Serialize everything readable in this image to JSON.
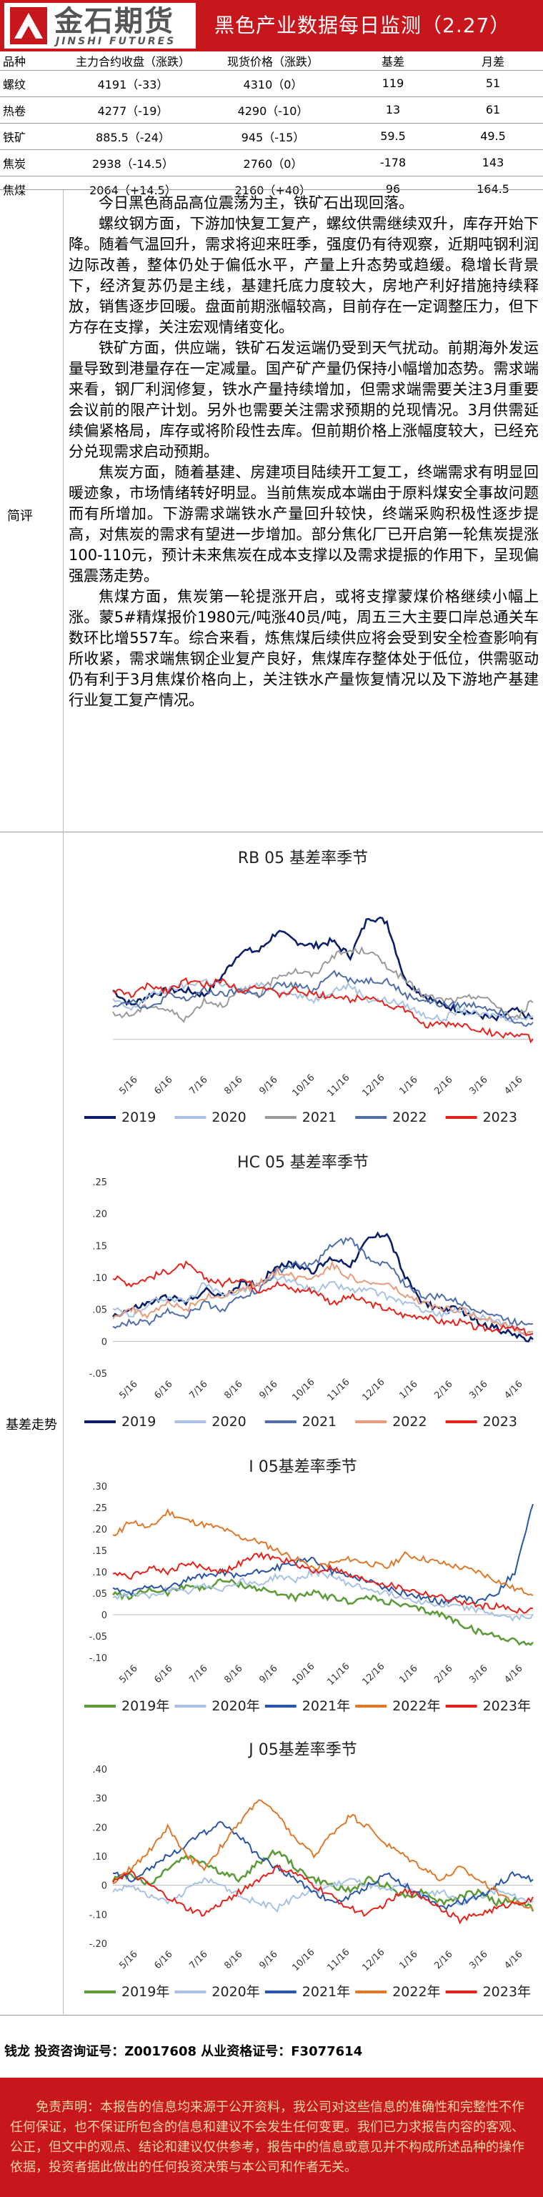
{
  "header": {
    "logo_cn": "金石期货",
    "logo_en": "JINSHI FUTURES",
    "title": "黑色产业数据每日监测（2.27）"
  },
  "price_table": {
    "headers": [
      "品种",
      "主力合约收盘（涨跌）",
      "现货价格（涨跌）",
      "基差",
      "月差"
    ],
    "rows": [
      [
        "螺纹",
        "4191（-33）",
        "4310（0）",
        "119",
        "51"
      ],
      [
        "热卷",
        "4277（-19）",
        "4290（-10）",
        "13",
        "61"
      ],
      [
        "铁矿",
        "885.5（-24）",
        "945（-15）",
        "59.5",
        "49.5"
      ],
      [
        "焦炭",
        "2938（-14.5）",
        "2760（0）",
        "-178",
        "143"
      ],
      [
        "焦煤",
        "2064（+14.5）",
        "2160（+40）",
        "96",
        "164.5"
      ]
    ]
  },
  "commentary": {
    "label": "简评",
    "paragraphs": [
      "今日黑色商品高位震荡为主，铁矿石出现回落。",
      "螺纹钢方面，下游加快复工复产，螺纹供需继续双升，库存开始下降。随着气温回升，需求将迎来旺季，强度仍有待观察，近期吨钢利润边际改善，整体仍处于偏低水平，产量上升态势或趋缓。稳增长背景下，经济复苏仍是主线，基建托底力度较大，房地产利好措施持续释放，销售逐步回暖。盘面前期涨幅较高，目前存在一定调整压力，但下方存在支撑，关注宏观情绪变化。",
      "铁矿方面，供应端，铁矿石发运端仍受到天气扰动。前期海外发运量导致到港量存在一定减量。国产矿产量仍保持小幅增加态势。需求端来看，钢厂利润修复，铁水产量持续增加，但需求端需要关注3月重要会议前的限产计划。另外也需要关注需求预期的兑现情况。3月供需延续偏紧格局，库存或将阶段性去库。但前期价格上涨幅度较大，已经充分兑现需求启动预期。",
      "焦炭方面，随着基建、房建项目陆续开工复工，终端需求有明显回暖迹象，市场情绪转好明显。当前焦炭成本端由于原料煤安全事故问题而有所增加。下游需求端铁水产量回升较快，终端采购积极性逐步提高，对焦炭的需求有望进一步增加。部分焦化厂已开启第一轮焦炭提涨100-110元，预计未来焦炭在成本支撑以及需求提振的作用下，呈现偏强震荡走势。",
      "焦煤方面，焦炭第一轮提涨开启，或将支撑蒙煤价格继续小幅上涨。蒙5#精煤报价1980元/吨涨40员/吨，周五三大主要口岸总通关车数环比增557车。综合来看，炼焦煤后续供应将会受到安全检查影响有所收紧，需求端焦钢企业复产良好，焦煤库存整体处于低位，供需驱动仍有利于3月焦煤价格向上，关注铁水产量恢复情况以及下游地产基建行业复工复产情况。"
    ]
  },
  "basis_section": {
    "label": "基差走势"
  },
  "chart_data": [
    {
      "type": "line",
      "title": "RB 05 基差率季节",
      "ylim": [
        -0.06,
        0.33
      ],
      "yticks": [],
      "xticks": [
        "5/16",
        "6/16",
        "7/16",
        "8/16",
        "9/16",
        "10/16",
        "11/16",
        "12/16",
        "1/16",
        "2/16",
        "3/16",
        "4/16"
      ],
      "legend_position": "bottom",
      "colors": [
        "#0b1f6b",
        "#a7c2e4",
        "#9a9a9a",
        "#4f6ea8",
        "#e5231c"
      ],
      "series": [
        {
          "name": "2019",
          "values": [
            0.1,
            0.07,
            0.09,
            0.1,
            0.1,
            0.09,
            0.13,
            0.18,
            0.18,
            0.22,
            0.2,
            0.19,
            0.2,
            0.17,
            0.25,
            0.24,
            0.12,
            0.09,
            0.07,
            0.06,
            0.05,
            0.04,
            0.06,
            0.04
          ]
        },
        {
          "name": "2020",
          "values": [
            0.08,
            0.06,
            0.09,
            0.1,
            0.11,
            0.12,
            0.11,
            0.1,
            0.11,
            0.1,
            0.09,
            0.08,
            0.1,
            0.11,
            0.08,
            0.08,
            0.07,
            0.05,
            0.04,
            0.06,
            0.05,
            0.05,
            0.04,
            0.05
          ]
        },
        {
          "name": "2021",
          "values": [
            0.05,
            0.05,
            0.07,
            0.06,
            0.04,
            0.08,
            0.07,
            0.1,
            0.09,
            0.13,
            0.14,
            0.13,
            0.17,
            0.18,
            0.18,
            0.15,
            0.12,
            0.09,
            0.08,
            0.08,
            0.09,
            0.07,
            0.04,
            0.08
          ]
        },
        {
          "name": "2022",
          "values": [
            0.07,
            0.08,
            0.06,
            0.09,
            0.08,
            0.1,
            0.09,
            0.1,
            0.09,
            0.11,
            0.11,
            0.1,
            0.14,
            0.12,
            0.12,
            0.12,
            0.09,
            0.08,
            0.07,
            0.07,
            0.07,
            0.06,
            0.04,
            0.03
          ]
        },
        {
          "name": "2023",
          "values": [
            0.1,
            0.09,
            0.11,
            0.1,
            0.12,
            0.11,
            0.12,
            0.1,
            0.11,
            0.09,
            0.1,
            0.09,
            0.09,
            0.08,
            0.09,
            0.07,
            0.06,
            0.03,
            0.03,
            0.03,
            0.02,
            0.01,
            0.01,
            0.0
          ]
        }
      ]
    },
    {
      "type": "line",
      "title": "HC 05 基差率季节",
      "ylim": [
        -0.05,
        0.25
      ],
      "yticks": [
        -0.05,
        0,
        0.05,
        0.1,
        0.15,
        0.2,
        0.25
      ],
      "xticks": [
        "5/16",
        "6/16",
        "7/16",
        "8/16",
        "9/16",
        "10/16",
        "11/16",
        "12/16",
        "1/16",
        "2/16",
        "3/16",
        "4/16"
      ],
      "legend_position": "bottom",
      "colors": [
        "#0b1f6b",
        "#a7c2e4",
        "#4f6ea8",
        "#e89b7b",
        "#e5231c"
      ],
      "series": [
        {
          "name": "2019",
          "values": [
            0.04,
            0.05,
            0.06,
            0.07,
            0.06,
            0.08,
            0.07,
            0.09,
            0.09,
            0.12,
            0.12,
            0.11,
            0.13,
            0.12,
            0.16,
            0.17,
            0.1,
            0.06,
            0.05,
            0.05,
            0.03,
            0.02,
            0.01,
            0.0
          ]
        },
        {
          "name": "2020",
          "values": [
            0.05,
            0.04,
            0.06,
            0.07,
            0.06,
            0.09,
            0.07,
            0.08,
            0.09,
            0.1,
            0.09,
            0.08,
            0.09,
            0.08,
            0.08,
            0.07,
            0.06,
            0.05,
            0.04,
            0.05,
            0.04,
            0.03,
            0.02,
            0.01
          ]
        },
        {
          "name": "2021",
          "values": [
            0.02,
            0.03,
            0.03,
            0.05,
            0.04,
            0.06,
            0.05,
            0.07,
            0.08,
            0.11,
            0.12,
            0.12,
            0.15,
            0.16,
            0.13,
            0.12,
            0.09,
            0.07,
            0.07,
            0.06,
            0.05,
            0.04,
            0.03,
            0.03
          ]
        },
        {
          "name": "2022",
          "values": [
            0.04,
            0.05,
            0.04,
            0.06,
            0.05,
            0.07,
            0.07,
            0.08,
            0.09,
            0.11,
            0.1,
            0.1,
            0.12,
            0.1,
            0.09,
            0.09,
            0.07,
            0.06,
            0.05,
            0.05,
            0.04,
            0.03,
            0.02,
            0.01
          ]
        },
        {
          "name": "2023",
          "values": [
            0.1,
            0.09,
            0.1,
            0.11,
            0.12,
            0.1,
            0.09,
            0.1,
            0.08,
            0.09,
            0.08,
            0.08,
            0.06,
            0.07,
            0.06,
            0.05,
            0.04,
            0.04,
            0.03,
            0.03,
            0.02,
            0.02,
            0.02,
            0.01
          ]
        }
      ]
    },
    {
      "type": "line",
      "title": "I 05基差率季节",
      "ylim": [
        -0.1,
        0.3
      ],
      "yticks": [
        -0.1,
        -0.05,
        0,
        0.05,
        0.1,
        0.15,
        0.2,
        0.25,
        0.3
      ],
      "xticks": [
        "5/16",
        "6/16",
        "7/16",
        "8/16",
        "9/16",
        "10/16",
        "11/16",
        "12/16",
        "1/16",
        "2/16",
        "3/16",
        "4/16"
      ],
      "legend_position": "bottom",
      "colors": [
        "#5e9b3a",
        "#a7c2e4",
        "#2a54a6",
        "#e0782a",
        "#e5231c"
      ],
      "series": [
        {
          "name": "2019年",
          "values": [
            0.05,
            0.04,
            0.06,
            0.05,
            0.07,
            0.06,
            0.08,
            0.07,
            0.06,
            0.05,
            0.04,
            0.05,
            0.04,
            0.03,
            0.04,
            0.03,
            0.02,
            0.01,
            0.0,
            -0.02,
            -0.04,
            -0.05,
            -0.06,
            -0.07
          ]
        },
        {
          "name": "2020年",
          "values": [
            0.04,
            0.05,
            0.04,
            0.06,
            0.05,
            0.07,
            0.06,
            0.08,
            0.07,
            0.09,
            0.08,
            0.1,
            0.09,
            0.07,
            0.06,
            0.05,
            0.04,
            0.03,
            0.02,
            0.02,
            0.01,
            0.0,
            -0.01,
            0.0
          ]
        },
        {
          "name": "2021年",
          "values": [
            0.06,
            0.05,
            0.07,
            0.06,
            0.08,
            0.09,
            0.1,
            0.09,
            0.1,
            0.11,
            0.12,
            0.13,
            0.1,
            0.09,
            0.08,
            0.06,
            0.05,
            0.04,
            0.03,
            0.04,
            0.03,
            0.05,
            0.1,
            0.26
          ]
        },
        {
          "name": "2022年",
          "values": [
            0.18,
            0.22,
            0.2,
            0.24,
            0.22,
            0.21,
            0.2,
            0.18,
            0.17,
            0.15,
            0.13,
            0.11,
            0.12,
            0.13,
            0.12,
            0.11,
            0.14,
            0.13,
            0.12,
            0.11,
            0.1,
            0.08,
            0.06,
            0.05
          ]
        },
        {
          "name": "2023年",
          "values": [
            0.1,
            0.09,
            0.11,
            0.1,
            0.12,
            0.11,
            0.1,
            0.12,
            0.14,
            0.13,
            0.12,
            0.1,
            0.11,
            0.09,
            0.08,
            0.07,
            0.06,
            0.05,
            0.04,
            0.03,
            0.02,
            0.02,
            0.01,
            0.01
          ]
        }
      ]
    },
    {
      "type": "line",
      "title": "J 05基差率季节",
      "ylim": [
        -0.2,
        0.4
      ],
      "yticks": [
        -0.2,
        -0.1,
        0,
        0.1,
        0.2,
        0.3,
        0.4
      ],
      "xticks": [
        "5/16",
        "6/16",
        "7/16",
        "8/16",
        "9/16",
        "10/16",
        "11/16",
        "12/16",
        "1/16",
        "2/16",
        "3/16",
        "4/16"
      ],
      "legend_position": "bottom",
      "colors": [
        "#5e9b3a",
        "#a7c2e4",
        "#2a54a6",
        "#e0782a",
        "#e5231c"
      ],
      "series": [
        {
          "name": "2019年",
          "values": [
            0.02,
            0.04,
            0.0,
            0.06,
            0.1,
            0.08,
            0.04,
            0.02,
            0.08,
            0.12,
            0.06,
            0.02,
            0.0,
            -0.02,
            0.02,
            0.0,
            -0.04,
            -0.02,
            -0.06,
            -0.04,
            -0.02,
            -0.06,
            -0.05,
            -0.08
          ]
        },
        {
          "name": "2020年",
          "values": [
            -0.02,
            0.0,
            -0.04,
            -0.06,
            -0.02,
            0.02,
            0.0,
            -0.04,
            -0.06,
            -0.08,
            -0.04,
            -0.02,
            0.0,
            0.02,
            0.0,
            -0.02,
            0.0,
            -0.04,
            -0.02,
            -0.06,
            -0.04,
            -0.02,
            -0.04,
            -0.06
          ]
        },
        {
          "name": "2021年",
          "values": [
            0.04,
            0.02,
            0.06,
            0.1,
            0.14,
            0.18,
            0.22,
            0.16,
            0.1,
            0.06,
            0.02,
            -0.02,
            -0.06,
            -0.04,
            0.0,
            0.04,
            0.0,
            -0.04,
            -0.08,
            -0.06,
            -0.04,
            0.0,
            0.04,
            0.02
          ]
        },
        {
          "name": "2022年",
          "values": [
            0.0,
            0.06,
            0.12,
            0.2,
            0.1,
            0.06,
            0.14,
            0.22,
            0.3,
            0.24,
            0.16,
            0.1,
            0.18,
            0.24,
            0.2,
            0.14,
            0.1,
            0.06,
            0.02,
            0.06,
            0.02,
            -0.02,
            -0.06,
            -0.08
          ]
        },
        {
          "name": "2023年",
          "values": [
            0.02,
            0.04,
            0.0,
            -0.04,
            -0.08,
            -0.1,
            -0.06,
            -0.02,
            0.02,
            0.06,
            0.04,
            0.0,
            -0.04,
            -0.08,
            -0.1,
            -0.06,
            -0.02,
            -0.04,
            -0.08,
            -0.12,
            -0.1,
            -0.08,
            -0.06,
            -0.05
          ]
        }
      ]
    }
  ],
  "analyst": {
    "text": "钱龙 投资咨询证号：Z0017608 从业资格证号：F3077614"
  },
  "disclaimer": {
    "text": "免责声明：本报告的信息均来源于公开资料，我公司对这些信息的准确性和完整性不作任何保证，也不保证所包含的信息和建议不会发生任何变更。我们已力求报告内容的客观、公正，但文中的观点、结论和建议仅供参考，报告中的信息或意见并不构成所述品种的操作依据，投资者据此做出的任何投资决策与本公司和作者无关。"
  }
}
